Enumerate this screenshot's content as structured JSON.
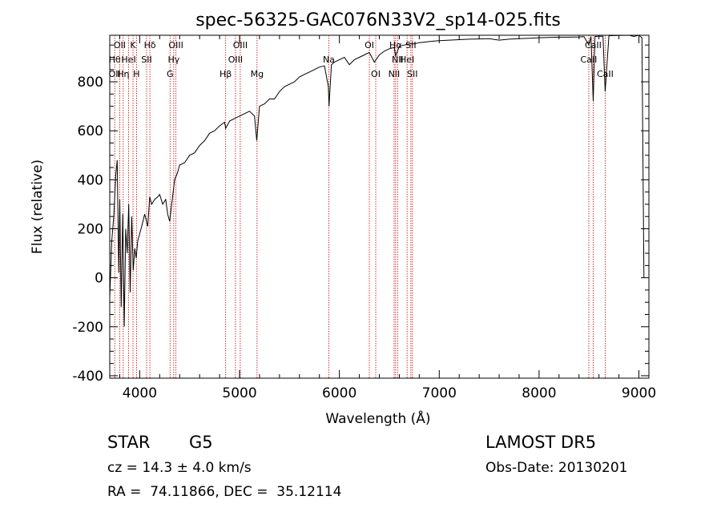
{
  "chart_data": {
    "type": "line",
    "title": "spec-56325-GAC076N33V2_sp14-025.fits",
    "xlabel": "Wavelength (Å)",
    "ylabel": "Flux (relative)",
    "xlim": [
      3700,
      9100
    ],
    "ylim": [
      -410,
      990
    ],
    "grid": false,
    "x_ticks": [
      4000,
      5000,
      6000,
      7000,
      8000,
      9000
    ],
    "y_ticks": [
      -400,
      -200,
      0,
      200,
      400,
      600,
      800
    ],
    "series": [
      {
        "color": "#000000",
        "points": [
          [
            3700,
            -80
          ],
          [
            3720,
            150
          ],
          [
            3740,
            250
          ],
          [
            3760,
            420
          ],
          [
            3775,
            480
          ],
          [
            3790,
            20
          ],
          [
            3800,
            320
          ],
          [
            3815,
            -120
          ],
          [
            3830,
            260
          ],
          [
            3845,
            -200
          ],
          [
            3860,
            200
          ],
          [
            3875,
            100
          ],
          [
            3890,
            300
          ],
          [
            3905,
            -60
          ],
          [
            3920,
            250
          ],
          [
            3935,
            30
          ],
          [
            3950,
            120
          ],
          [
            3965,
            80
          ],
          [
            3980,
            150
          ],
          [
            4000,
            180
          ],
          [
            4020,
            210
          ],
          [
            4050,
            260
          ],
          [
            4080,
            210
          ],
          [
            4100,
            330
          ],
          [
            4120,
            300
          ],
          [
            4150,
            320
          ],
          [
            4180,
            330
          ],
          [
            4200,
            340
          ],
          [
            4230,
            300
          ],
          [
            4260,
            320
          ],
          [
            4280,
            260
          ],
          [
            4300,
            230
          ],
          [
            4320,
            300
          ],
          [
            4350,
            400
          ],
          [
            4380,
            430
          ],
          [
            4400,
            460
          ],
          [
            4450,
            470
          ],
          [
            4500,
            500
          ],
          [
            4550,
            510
          ],
          [
            4600,
            540
          ],
          [
            4650,
            560
          ],
          [
            4700,
            590
          ],
          [
            4750,
            600
          ],
          [
            4800,
            620
          ],
          [
            4850,
            635
          ],
          [
            4861,
            610
          ],
          [
            4900,
            640
          ],
          [
            4950,
            650
          ],
          [
            5000,
            660
          ],
          [
            5050,
            670
          ],
          [
            5100,
            680
          ],
          [
            5150,
            660
          ],
          [
            5172,
            560
          ],
          [
            5200,
            700
          ],
          [
            5250,
            710
          ],
          [
            5300,
            730
          ],
          [
            5350,
            730
          ],
          [
            5400,
            760
          ],
          [
            5450,
            780
          ],
          [
            5500,
            790
          ],
          [
            5550,
            800
          ],
          [
            5600,
            820
          ],
          [
            5650,
            830
          ],
          [
            5700,
            840
          ],
          [
            5750,
            850
          ],
          [
            5800,
            860
          ],
          [
            5850,
            865
          ],
          [
            5890,
            780
          ],
          [
            5896,
            700
          ],
          [
            5920,
            870
          ],
          [
            5950,
            880
          ],
          [
            6000,
            890
          ],
          [
            6050,
            900
          ],
          [
            6100,
            870
          ],
          [
            6150,
            890
          ],
          [
            6200,
            900
          ],
          [
            6250,
            910
          ],
          [
            6300,
            920
          ],
          [
            6350,
            880
          ],
          [
            6400,
            910
          ],
          [
            6450,
            925
          ],
          [
            6500,
            935
          ],
          [
            6550,
            940
          ],
          [
            6563,
            905
          ],
          [
            6600,
            945
          ],
          [
            6650,
            950
          ],
          [
            6700,
            955
          ],
          [
            6750,
            955
          ],
          [
            6800,
            960
          ],
          [
            6850,
            962
          ],
          [
            6900,
            964
          ],
          [
            6950,
            966
          ],
          [
            7000,
            968
          ],
          [
            7100,
            970
          ],
          [
            7200,
            972
          ],
          [
            7300,
            974
          ],
          [
            7400,
            975
          ],
          [
            7500,
            976
          ],
          [
            7600,
            970
          ],
          [
            7700,
            974
          ],
          [
            7800,
            976
          ],
          [
            7900,
            978
          ],
          [
            8000,
            980
          ],
          [
            8100,
            981
          ],
          [
            8200,
            982
          ],
          [
            8300,
            982
          ],
          [
            8400,
            983
          ],
          [
            8450,
            984
          ],
          [
            8498,
            950
          ],
          [
            8520,
            985
          ],
          [
            8542,
            720
          ],
          [
            8560,
            985
          ],
          [
            8600,
            986
          ],
          [
            8640,
            986
          ],
          [
            8662,
            760
          ],
          [
            8700,
            988
          ],
          [
            8800,
            989
          ],
          [
            8900,
            990
          ],
          [
            8950,
            985
          ],
          [
            9000,
            990
          ],
          [
            9030,
            980
          ],
          [
            9050,
            0
          ]
        ]
      }
    ],
    "line_markers": [
      {
        "x": 3750,
        "labels": [
          "Hθ",
          "OII"
        ],
        "rows": [
          2,
          3
        ]
      },
      {
        "x": 3800,
        "labels": [
          "OII"
        ],
        "rows": [
          1
        ]
      },
      {
        "x": 3835,
        "labels": [
          "Hη"
        ],
        "rows": [
          3
        ]
      },
      {
        "x": 3889,
        "labels": [
          "HeI"
        ],
        "rows": [
          2
        ]
      },
      {
        "x": 3933,
        "labels": [
          "K"
        ],
        "rows": [
          1
        ]
      },
      {
        "x": 3968,
        "labels": [
          "H"
        ],
        "rows": [
          3
        ]
      },
      {
        "x": 4069,
        "labels": [
          "SII"
        ],
        "rows": [
          2
        ]
      },
      {
        "x": 4102,
        "labels": [
          "Hδ"
        ],
        "rows": [
          1
        ]
      },
      {
        "x": 4304,
        "labels": [
          "G"
        ],
        "rows": [
          3
        ]
      },
      {
        "x": 4341,
        "labels": [
          "Hγ"
        ],
        "rows": [
          2
        ]
      },
      {
        "x": 4363,
        "labels": [
          "OIII"
        ],
        "rows": [
          1
        ]
      },
      {
        "x": 4861,
        "labels": [
          "Hβ"
        ],
        "rows": [
          3
        ]
      },
      {
        "x": 4959,
        "labels": [
          "OIII"
        ],
        "rows": [
          2
        ]
      },
      {
        "x": 5007,
        "labels": [
          "OIII"
        ],
        "rows": [
          1
        ]
      },
      {
        "x": 5175,
        "labels": [
          "Mg"
        ],
        "rows": [
          3
        ]
      },
      {
        "x": 5894,
        "labels": [
          "Na"
        ],
        "rows": [
          2
        ]
      },
      {
        "x": 6300,
        "labels": [
          "OI"
        ],
        "rows": [
          1
        ]
      },
      {
        "x": 6364,
        "labels": [
          "OI"
        ],
        "rows": [
          3
        ]
      },
      {
        "x": 6548,
        "labels": [
          "NII"
        ],
        "rows": [
          3
        ]
      },
      {
        "x": 6563,
        "labels": [
          "Hα"
        ],
        "rows": [
          1
        ]
      },
      {
        "x": 6583,
        "labels": [
          "NII"
        ],
        "rows": [
          2
        ]
      },
      {
        "x": 6678,
        "labels": [
          "HeI"
        ],
        "rows": [
          2
        ]
      },
      {
        "x": 6716,
        "labels": [
          "SII"
        ],
        "rows": [
          1
        ]
      },
      {
        "x": 6731,
        "labels": [
          "SII"
        ],
        "rows": [
          3
        ]
      },
      {
        "x": 8498,
        "labels": [
          "CaII"
        ],
        "rows": [
          2
        ]
      },
      {
        "x": 8542,
        "labels": [
          "CaII"
        ],
        "rows": [
          1
        ]
      },
      {
        "x": 8662,
        "labels": [
          "CaII"
        ],
        "rows": [
          3
        ]
      }
    ],
    "marker_color": "#cc0000"
  },
  "info": {
    "class_label": "STAR",
    "subclass": "G5",
    "survey": "LAMOST DR5",
    "cz": "cz = 14.3 ± 4.0 km/s",
    "obs_date": "Obs-Date: 20130201",
    "radec": "RA =  74.11866, DEC =  35.12114"
  }
}
